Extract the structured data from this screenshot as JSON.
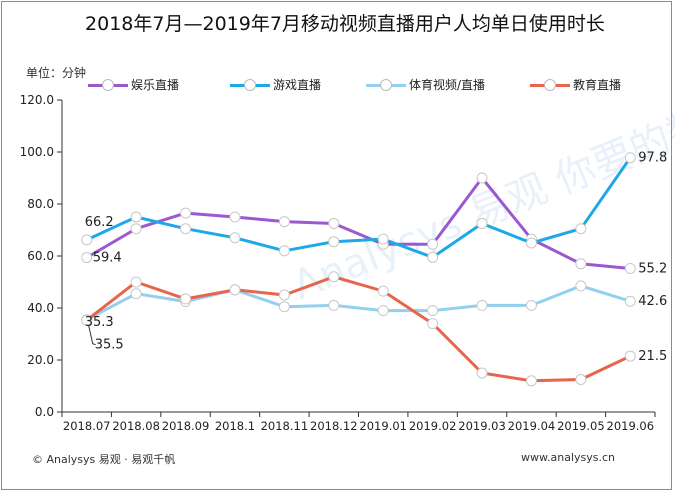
{
  "title": "2018年7月—2019年7月移动视频直播用户人均单日使用时长",
  "unit_label": "单位：分钟",
  "footer_left": "© Analysys 易观 · 易观千帆",
  "footer_right": "www.analysys.cn",
  "watermark": "Analysys 易观 你要的数据分析",
  "colors": {
    "entertainment": "#9b59d0",
    "game": "#1fa8e8",
    "sports": "#93cfee",
    "education": "#e8644a"
  },
  "chart_data": {
    "type": "line",
    "categories": [
      "2018.07",
      "2018.08",
      "2018.09",
      "2018.1",
      "2018.11",
      "2018.12",
      "2019.01",
      "2019.02",
      "2019.03",
      "2019.04",
      "2019.05",
      "2019.06"
    ],
    "ylim": [
      0,
      120
    ],
    "yticks": [
      "0.0",
      "20.0",
      "40.0",
      "60.0",
      "80.0",
      "100.0",
      "120.0"
    ],
    "grid": false,
    "legend_position": "top",
    "series": [
      {
        "name": "娱乐直播",
        "color_key": "entertainment",
        "values": [
          59.4,
          70.5,
          76.5,
          75.0,
          73.2,
          72.5,
          64.5,
          64.5,
          90.0,
          66.5,
          57.0,
          55.2
        ]
      },
      {
        "name": "游戏直播",
        "color_key": "game",
        "values": [
          66.2,
          75.0,
          70.5,
          67.0,
          62.0,
          65.5,
          66.5,
          59.5,
          72.5,
          65.0,
          70.5,
          97.8
        ]
      },
      {
        "name": "体育视频/直播",
        "color_key": "sports",
        "values": [
          35.5,
          45.5,
          42.5,
          47.0,
          40.5,
          41.0,
          39.0,
          39.0,
          41.0,
          41.0,
          48.5,
          42.6
        ]
      },
      {
        "name": "教育直播",
        "color_key": "education",
        "values": [
          35.3,
          50.0,
          43.5,
          47.0,
          45.0,
          52.0,
          46.5,
          34.0,
          15.0,
          12.0,
          12.5,
          21.5
        ]
      }
    ],
    "data_labels": [
      {
        "series": 1,
        "index": 0,
        "text": "66.2"
      },
      {
        "series": 0,
        "index": 0,
        "text": "59.4"
      },
      {
        "series": 3,
        "index": 0,
        "text": "35.3"
      },
      {
        "series": 2,
        "index": 0,
        "text": "35.5"
      },
      {
        "series": 1,
        "index": 11,
        "text": "97.8"
      },
      {
        "series": 0,
        "index": 11,
        "text": "55.2"
      },
      {
        "series": 2,
        "index": 11,
        "text": "42.6"
      },
      {
        "series": 3,
        "index": 11,
        "text": "21.5"
      }
    ]
  }
}
